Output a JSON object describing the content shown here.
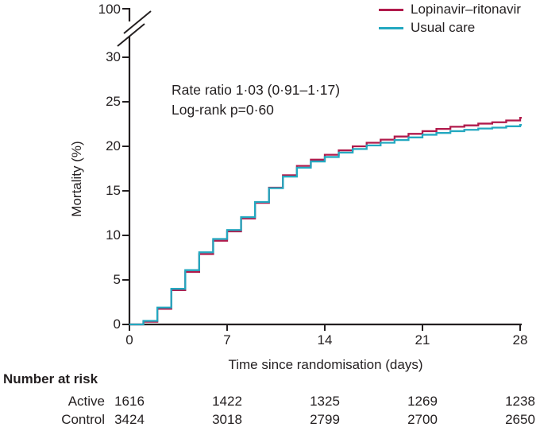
{
  "legend": {
    "items": [
      {
        "label": "Lopinavir–ritonavir",
        "color": "#b11a4b"
      },
      {
        "label": "Usual care",
        "color": "#23a8c0"
      }
    ]
  },
  "annotation": {
    "line1": "Rate ratio 1·03 (0·91–1·17)",
    "line2": "Log-rank p=0·60"
  },
  "axes": {
    "y_label": "Mortality (%)",
    "x_label": "Time since randomisation (days)",
    "y_ticks": [
      "100",
      "30",
      "25",
      "20",
      "15",
      "10",
      "5",
      "0"
    ],
    "x_ticks": [
      "0",
      "7",
      "14",
      "21",
      "28"
    ]
  },
  "risk_table": {
    "title": "Number at risk",
    "rows": [
      {
        "label": "Active",
        "values": [
          "1616",
          "1422",
          "1325",
          "1269",
          "1238"
        ]
      },
      {
        "label": "Control",
        "values": [
          "3424",
          "3018",
          "2799",
          "2700",
          "2650"
        ]
      }
    ]
  },
  "chart_data": {
    "type": "line",
    "subtype": "kaplan-meier-step",
    "title": "",
    "xlabel": "Time since randomisation (days)",
    "ylabel": "Mortality (%)",
    "xlim": [
      0,
      28
    ],
    "ylim": [
      0,
      30
    ],
    "y_axis_break": {
      "lower_max": 30,
      "top_tick": 100
    },
    "x_tick_values": [
      0,
      7,
      14,
      21,
      28
    ],
    "y_tick_values": [
      0,
      5,
      10,
      15,
      20,
      25,
      30,
      100
    ],
    "grid": false,
    "legend_position": "top-right",
    "annotations": [
      "Rate ratio 1·03 (0·91–1·17)",
      "Log-rank p=0·60"
    ],
    "x": [
      0,
      1,
      2,
      3,
      4,
      5,
      6,
      7,
      8,
      9,
      10,
      11,
      12,
      13,
      14,
      15,
      16,
      17,
      18,
      19,
      20,
      21,
      22,
      23,
      24,
      25,
      26,
      27,
      28
    ],
    "series": [
      {
        "name": "Lopinavir–ritonavir",
        "color": "#b11a4b",
        "values": [
          0,
          0.3,
          1.75,
          3.85,
          5.9,
          7.9,
          9.4,
          10.45,
          11.9,
          13.65,
          15.35,
          16.75,
          17.8,
          18.5,
          19.05,
          19.55,
          20.0,
          20.4,
          20.75,
          21.1,
          21.4,
          21.7,
          21.95,
          22.2,
          22.35,
          22.55,
          22.7,
          22.9,
          23.2
        ]
      },
      {
        "name": "Usual care",
        "color": "#23a8c0",
        "values": [
          0,
          0.4,
          1.9,
          4.0,
          6.1,
          8.1,
          9.6,
          10.6,
          12.05,
          13.75,
          15.3,
          16.6,
          17.6,
          18.3,
          18.8,
          19.3,
          19.7,
          20.1,
          20.4,
          20.7,
          21.0,
          21.3,
          21.5,
          21.7,
          21.85,
          22.0,
          22.1,
          22.25,
          22.4
        ]
      }
    ],
    "number_at_risk": {
      "times": [
        0,
        7,
        14,
        21,
        28
      ],
      "Active": [
        1616,
        1422,
        1325,
        1269,
        1238
      ],
      "Control": [
        3424,
        3018,
        2799,
        2700,
        2650
      ]
    }
  }
}
